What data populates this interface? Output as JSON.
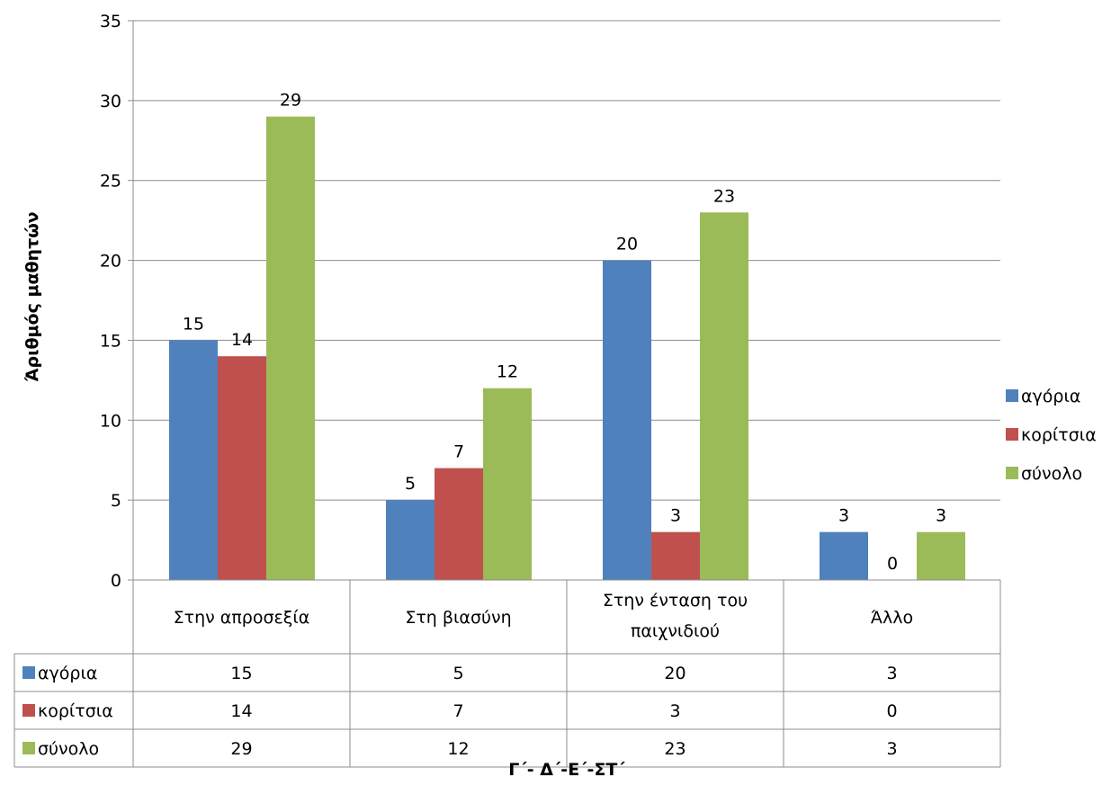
{
  "chart_data": {
    "type": "bar",
    "categories": [
      [
        "Στην απροσεξία"
      ],
      [
        "Στη βιασύνη"
      ],
      [
        "Στην ένταση του",
        "παιχνιδιού"
      ],
      [
        "Άλλο"
      ]
    ],
    "series": [
      {
        "name": "αγόρια",
        "color": "#4F81BD",
        "values": [
          15,
          5,
          20,
          3
        ]
      },
      {
        "name": "κορίτσια",
        "color": "#C0504D",
        "values": [
          14,
          7,
          3,
          0
        ]
      },
      {
        "name": "σύνολο",
        "color": "#9BBB59",
        "values": [
          29,
          12,
          23,
          3
        ]
      }
    ],
    "ylabel": "Άριθμός μαθητών",
    "xlabel": "Γ΄- Δ΄-Ε΄-ΣΤ΄",
    "ylim": [
      0,
      35
    ],
    "yticks": [
      0,
      5,
      10,
      15,
      20,
      25,
      30,
      35
    ],
    "grid": true,
    "legend_position": "right",
    "data_table": true
  }
}
